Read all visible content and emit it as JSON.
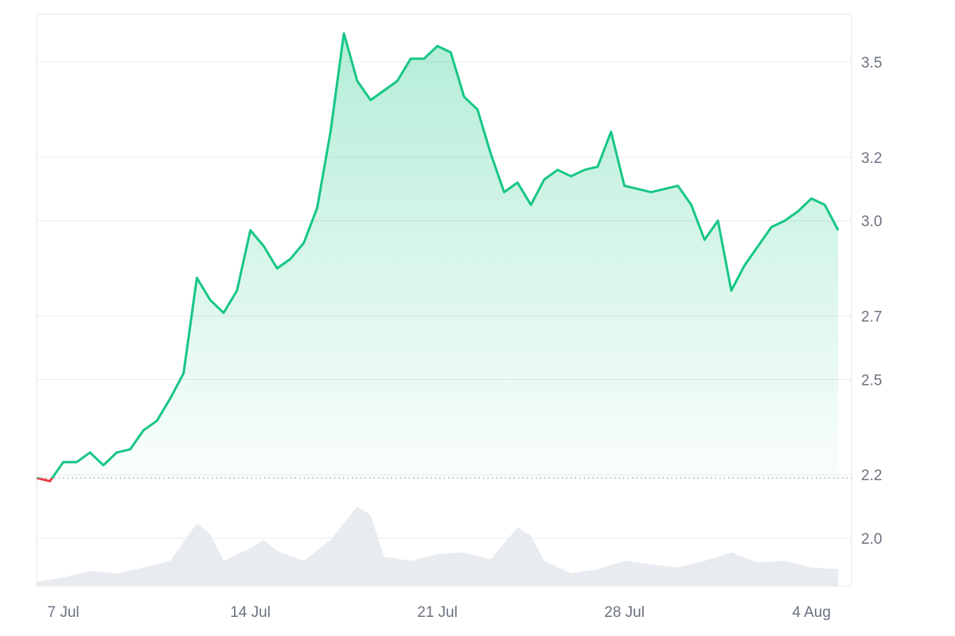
{
  "chart_data": {
    "type": "area",
    "title": "",
    "xlabel": "",
    "ylabel": "",
    "x_ticks": [
      "7 Jul",
      "14 Jul",
      "21 Jul",
      "28 Jul",
      "4 Aug"
    ],
    "y_ticks": [
      "2.0",
      "2.2",
      "2.5",
      "2.7",
      "3.0",
      "3.2",
      "3.5"
    ],
    "ylim": [
      1.85,
      3.65
    ],
    "baseline": 2.19,
    "colors": {
      "up": "#16c784",
      "down": "#ea3943",
      "fill": "#16c784",
      "volume": "#e8ebef",
      "grid": "#eceef1",
      "axis_text": "#6b7280"
    },
    "series": [
      {
        "x": [
          "2024-07-06",
          "2024-07-06T12:00",
          "2024-07-07",
          "2024-07-07T12:00",
          "2024-07-08",
          "2024-07-08T12:00",
          "2024-07-09",
          "2024-07-09T12:00",
          "2024-07-10",
          "2024-07-10T12:00",
          "2024-07-11",
          "2024-07-11T12:00",
          "2024-07-12",
          "2024-07-12T12:00",
          "2024-07-13",
          "2024-07-13T12:00",
          "2024-07-14",
          "2024-07-14T12:00",
          "2024-07-15",
          "2024-07-15T12:00",
          "2024-07-16",
          "2024-07-16T12:00",
          "2024-07-17",
          "2024-07-17T12:00",
          "2024-07-18",
          "2024-07-18T12:00",
          "2024-07-19",
          "2024-07-19T12:00",
          "2024-07-20",
          "2024-07-20T12:00",
          "2024-07-21",
          "2024-07-21T12:00",
          "2024-07-22",
          "2024-07-22T12:00",
          "2024-07-23",
          "2024-07-23T12:00",
          "2024-07-24",
          "2024-07-24T12:00",
          "2024-07-25",
          "2024-07-25T12:00",
          "2024-07-26",
          "2024-07-26T12:00",
          "2024-07-27",
          "2024-07-27T12:00",
          "2024-07-28",
          "2024-07-28T12:00",
          "2024-07-29",
          "2024-07-29T12:00",
          "2024-07-30",
          "2024-07-30T12:00",
          "2024-07-31",
          "2024-07-31T12:00",
          "2024-08-01",
          "2024-08-01T12:00",
          "2024-08-02",
          "2024-08-02T12:00",
          "2024-08-03",
          "2024-08-03T12:00",
          "2024-08-04",
          "2024-08-04T12:00",
          "2024-08-05"
        ],
        "y": [
          2.19,
          2.18,
          2.24,
          2.24,
          2.27,
          2.23,
          2.27,
          2.28,
          2.34,
          2.37,
          2.44,
          2.52,
          2.82,
          2.75,
          2.71,
          2.78,
          2.97,
          2.92,
          2.85,
          2.88,
          2.93,
          3.04,
          3.28,
          3.59,
          3.44,
          3.38,
          3.41,
          3.44,
          3.51,
          3.51,
          3.55,
          3.53,
          3.39,
          3.35,
          3.21,
          3.09,
          3.12,
          3.05,
          3.13,
          3.16,
          3.14,
          3.16,
          3.17,
          3.28,
          3.11,
          3.1,
          3.09,
          3.1,
          3.11,
          3.05,
          2.94,
          3.0,
          2.78,
          2.86,
          2.92,
          2.98,
          3.0,
          3.03,
          3.07,
          3.05,
          2.97
        ]
      }
    ],
    "volume": {
      "x": [
        "2024-07-06",
        "2024-07-07",
        "2024-07-08",
        "2024-07-09",
        "2024-07-10",
        "2024-07-11",
        "2024-07-12",
        "2024-07-12T12:00",
        "2024-07-13",
        "2024-07-14",
        "2024-07-14T12:00",
        "2024-07-15",
        "2024-07-16",
        "2024-07-17",
        "2024-07-18",
        "2024-07-18T12:00",
        "2024-07-19",
        "2024-07-20",
        "2024-07-21",
        "2024-07-22",
        "2024-07-23",
        "2024-07-24",
        "2024-07-24T12:00",
        "2024-07-25",
        "2024-07-26",
        "2024-07-27",
        "2024-07-28",
        "2024-07-29",
        "2024-07-30",
        "2024-07-31",
        "2024-08-01",
        "2024-08-02",
        "2024-08-03",
        "2024-08-04",
        "2024-08-05"
      ],
      "values": [
        0.05,
        0.1,
        0.18,
        0.15,
        0.22,
        0.3,
        0.75,
        0.62,
        0.3,
        0.45,
        0.55,
        0.42,
        0.3,
        0.55,
        0.95,
        0.85,
        0.35,
        0.3,
        0.38,
        0.4,
        0.32,
        0.7,
        0.6,
        0.3,
        0.15,
        0.2,
        0.3,
        0.26,
        0.22,
        0.3,
        0.4,
        0.28,
        0.3,
        0.22,
        0.2
      ]
    }
  }
}
